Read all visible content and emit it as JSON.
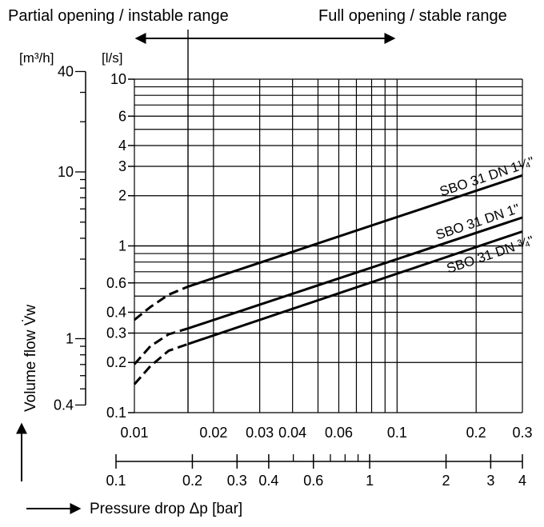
{
  "chart_data": {
    "type": "line",
    "x_scale": "log",
    "y_scale": "log",
    "xlim": [
      0.01,
      0.3
    ],
    "ylim": [
      0.1,
      10
    ],
    "grid": true,
    "annotations": {
      "partial": "Partial opening / instable range",
      "full": "Full opening / stable range",
      "boundary_x": 0.016
    },
    "units": {
      "m3h": "[m³/h]",
      "ls": "[l/s]"
    },
    "y_ticks_ls": [
      {
        "value": 10,
        "label": "10"
      },
      {
        "value": 6,
        "label": "6"
      },
      {
        "value": 4,
        "label": "4"
      },
      {
        "value": 3,
        "label": "3"
      },
      {
        "value": 2,
        "label": "2"
      },
      {
        "value": 1,
        "label": "1"
      },
      {
        "value": 0.6,
        "label": "0.6"
      },
      {
        "value": 0.4,
        "label": "0.4"
      },
      {
        "value": 0.3,
        "label": "0.3"
      },
      {
        "value": 0.2,
        "label": "0.2"
      },
      {
        "value": 0.1,
        "label": "0.1"
      }
    ],
    "y_ticks_m3h": [
      {
        "value": 40,
        "label": "40"
      },
      {
        "value": 10,
        "label": "10"
      },
      {
        "value": 1,
        "label": "1"
      },
      {
        "value": 0.4,
        "label": "0.4"
      }
    ],
    "x_ticks": [
      {
        "value": 0.01,
        "label": "0.01"
      },
      {
        "value": 0.02,
        "label": "0.02"
      },
      {
        "value": 0.03,
        "label": "0.03"
      },
      {
        "value": 0.04,
        "label": "0.04"
      },
      {
        "value": 0.06,
        "label": "0.06"
      },
      {
        "value": 0.1,
        "label": "0.1"
      },
      {
        "value": 0.2,
        "label": "0.2"
      },
      {
        "value": 0.3,
        "label": "0.3"
      }
    ],
    "x2_ticks": [
      {
        "value": 0.1,
        "label": "0.1"
      },
      {
        "value": 0.2,
        "label": "0.2"
      },
      {
        "value": 0.3,
        "label": "0.3"
      },
      {
        "value": 0.4,
        "label": "0.4"
      },
      {
        "value": 0.6,
        "label": "0.6"
      },
      {
        "value": 1,
        "label": "1"
      },
      {
        "value": 2,
        "label": "2"
      },
      {
        "value": 3,
        "label": "3"
      },
      {
        "value": 4,
        "label": "4"
      }
    ],
    "x2_minor": [
      0.5,
      0.7,
      0.8,
      0.9
    ],
    "ylabel": "Volume flow V̇w",
    "xlabel": "Pressure drop Δp [bar]",
    "series": [
      {
        "name": "SBO 31 DN 1¼\"",
        "dashed": [
          [
            0.01,
            0.36
          ],
          [
            0.0115,
            0.43
          ],
          [
            0.0135,
            0.51
          ],
          [
            0.016,
            0.57
          ]
        ],
        "solid": [
          [
            0.016,
            0.57
          ],
          [
            0.3,
            2.65
          ]
        ]
      },
      {
        "name": "SBO 31 DN 1\"",
        "dashed": [
          [
            0.01,
            0.195
          ],
          [
            0.0115,
            0.25
          ],
          [
            0.0135,
            0.295
          ],
          [
            0.016,
            0.32
          ]
        ],
        "solid": [
          [
            0.016,
            0.32
          ],
          [
            0.3,
            1.48
          ]
        ]
      },
      {
        "name": "SBO 31 DN ¾\"",
        "dashed": [
          [
            0.01,
            0.148
          ],
          [
            0.0115,
            0.19
          ],
          [
            0.0135,
            0.235
          ],
          [
            0.016,
            0.258
          ]
        ],
        "solid": [
          [
            0.016,
            0.258
          ],
          [
            0.3,
            1.22
          ]
        ]
      }
    ]
  }
}
